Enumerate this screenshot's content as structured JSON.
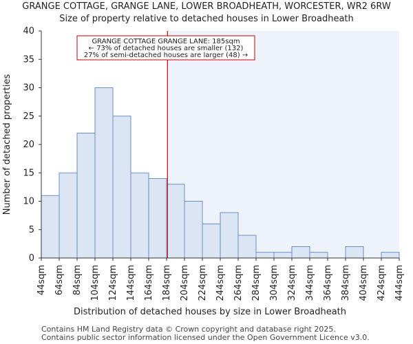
{
  "chart_data": {
    "type": "bar",
    "title": "GRANGE COTTAGE, GRANGE LANE, LOWER BROADHEATH, WORCESTER, WR2 6RW",
    "subtitle": "Size of property relative to detached houses in Lower Broadheath",
    "xlabel": "Distribution of detached houses by size in Lower Broadheath",
    "ylabel": "Number of detached properties",
    "x_ticks": [
      "44sqm",
      "64sqm",
      "84sqm",
      "104sqm",
      "124sqm",
      "144sqm",
      "164sqm",
      "184sqm",
      "204sqm",
      "224sqm",
      "244sqm",
      "264sqm",
      "284sqm",
      "304sqm",
      "324sqm",
      "344sqm",
      "364sqm",
      "384sqm",
      "404sqm",
      "424sqm",
      "444sqm"
    ],
    "bin_edges": [
      44,
      64,
      84,
      104,
      124,
      144,
      164,
      184,
      204,
      224,
      244,
      264,
      284,
      304,
      324,
      344,
      364,
      384,
      404,
      424,
      444
    ],
    "values": [
      11,
      15,
      22,
      30,
      25,
      15,
      14,
      13,
      10,
      6,
      8,
      4,
      1,
      1,
      2,
      1,
      0,
      2,
      0,
      1
    ],
    "ylim": [
      0,
      40
    ],
    "y_ticks": [
      0,
      5,
      10,
      15,
      20,
      25,
      30,
      35,
      40
    ],
    "marker_value": 185,
    "grid": false,
    "colors": {
      "bar_fill": "#dbe5f4",
      "bar_stroke": "#6a8fc7",
      "marker": "#c00000",
      "highlight_region": "#eef2fa",
      "annotation_border": "#c00000"
    },
    "annotation": {
      "lines": [
        "GRANGE COTTAGE GRANGE LANE: 185sqm",
        "← 73% of detached houses are smaller (132)",
        "27% of semi-detached houses are larger (48) →"
      ]
    }
  },
  "footer": {
    "line1": "Contains HM Land Registry data © Crown copyright and database right 2025.",
    "line2": "Contains public sector information licensed under the Open Government Licence v3.0."
  }
}
